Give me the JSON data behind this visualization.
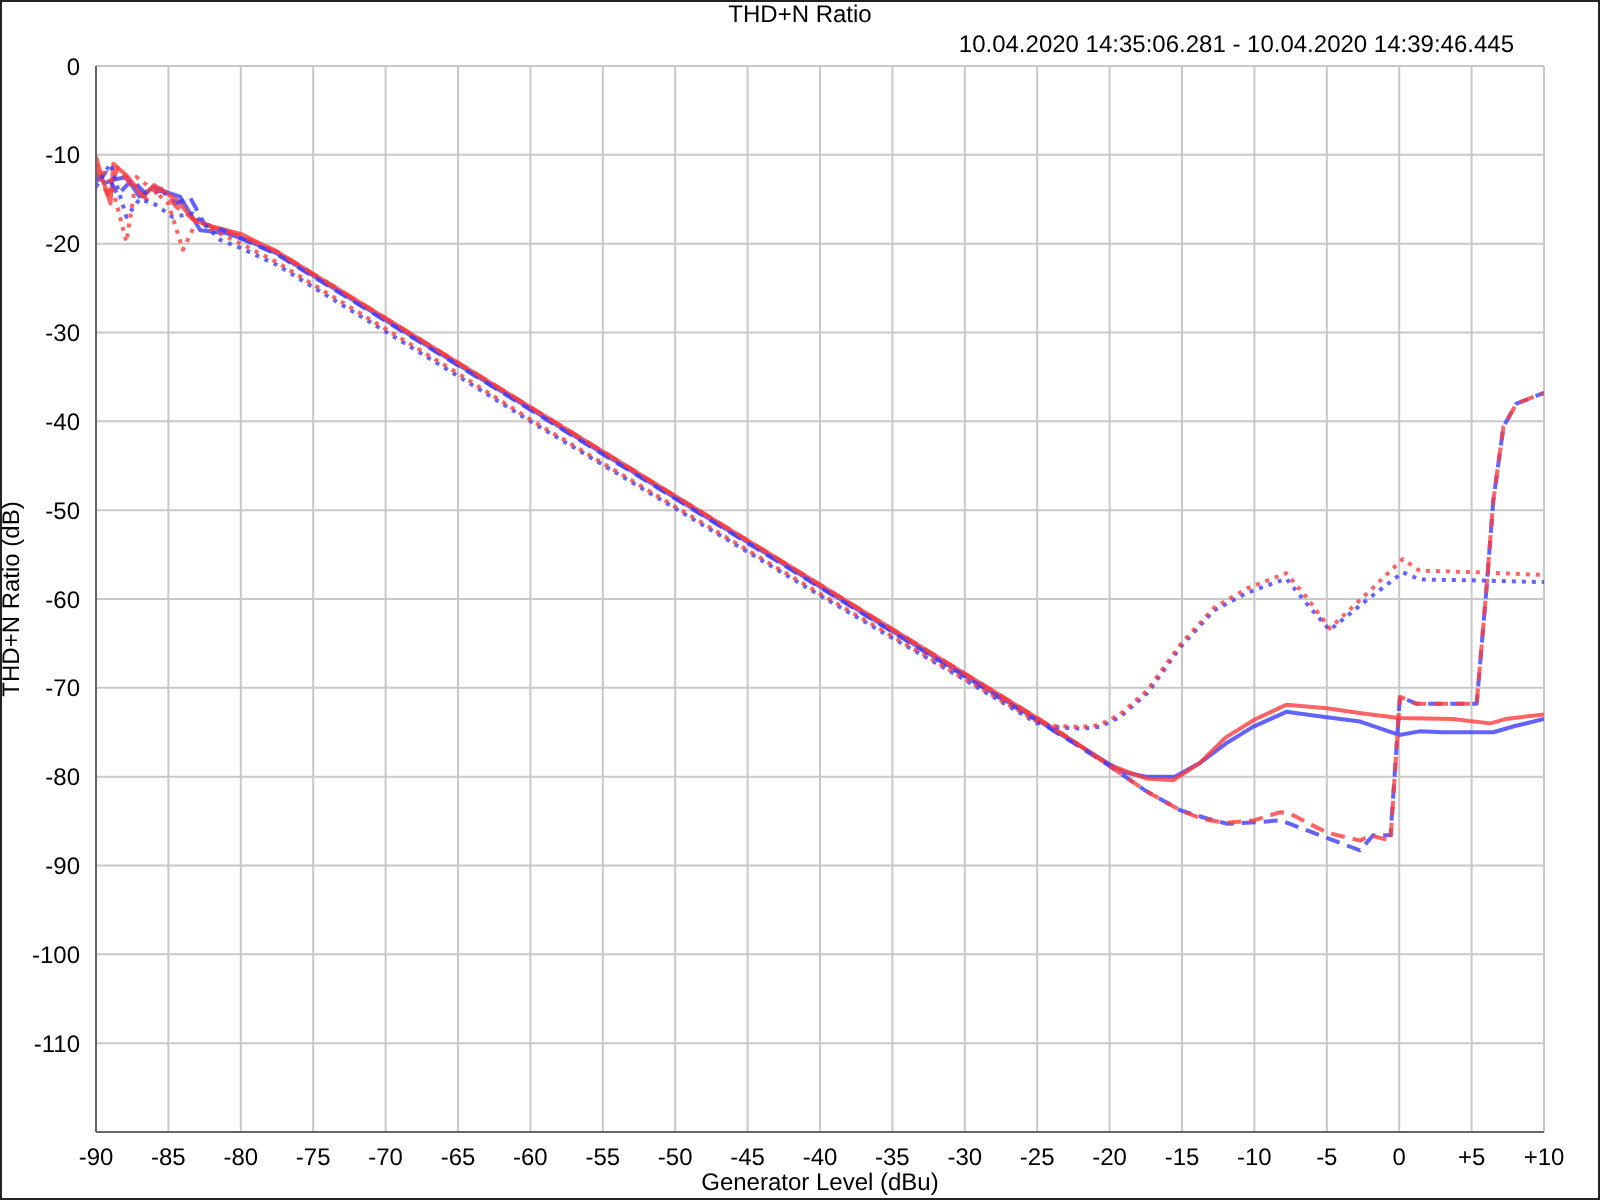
{
  "chart_data": {
    "type": "line",
    "title": "THD+N Ratio",
    "subtitle": "10.04.2020 14:35:06.281 - 10.04.2020 14:39:46.445",
    "xlabel": "Generator Level (dBu)",
    "ylabel": "THD+N Ratio (dB)",
    "xlim": [
      -90,
      10
    ],
    "xticks": [
      -90,
      -85,
      -80,
      -75,
      -70,
      -65,
      -60,
      -55,
      -50,
      -45,
      -40,
      -35,
      -30,
      -25,
      -20,
      -15,
      -10,
      -5,
      0,
      {
        "value": 5,
        "label": "+5"
      },
      {
        "value": 10,
        "label": "+10"
      }
    ],
    "ylim": [
      -120,
      0
    ],
    "yticks": [
      0,
      -10,
      -20,
      -30,
      -40,
      -50,
      -60,
      -70,
      -80,
      -90,
      -100,
      -110,
      {
        "value": -120,
        "label": null
      }
    ],
    "grid": true,
    "series": [
      {
        "color": "#3c3cff",
        "line_style": "solid",
        "x": [
          -90,
          -89.4,
          -88.8,
          -87.9,
          -87,
          -86,
          -85,
          -84.2,
          -82.8,
          -81,
          -79.6,
          -77.5,
          -75,
          -72.5,
          -70,
          -67.5,
          -65,
          -62.5,
          -60,
          -57.5,
          -55,
          -52.5,
          -50,
          -47.5,
          -45,
          -42.5,
          -40,
          -37.5,
          -35,
          -32.5,
          -30,
          -27.5,
          -25,
          -22.5,
          -20,
          -19,
          -17.5,
          -15.5,
          -13.8,
          -12,
          -10.1,
          -7.8,
          -5,
          -2.7,
          0,
          1.4,
          3,
          5.1,
          6.5,
          8,
          10
        ],
        "values": [
          -12.1,
          -13.2,
          -12.8,
          -12.5,
          -14.7,
          -13.6,
          -14.3,
          -14.7,
          -18.5,
          -18.8,
          -19.6,
          -21.1,
          -23.6,
          -26.1,
          -28.6,
          -31.1,
          -33.6,
          -36.1,
          -38.6,
          -41.1,
          -43.6,
          -46.1,
          -48.6,
          -51.1,
          -53.6,
          -56.1,
          -58.6,
          -61.1,
          -63.6,
          -66.1,
          -68.6,
          -71.1,
          -73.6,
          -76.1,
          -78.6,
          -79.5,
          -80,
          -80,
          -78.5,
          -76.3,
          -74.4,
          -72.7,
          -73.3,
          -73.8,
          -75.3,
          -74.9,
          -75,
          -75,
          -75,
          -74.3,
          -73.5
        ]
      },
      {
        "color": "#ff3c3c",
        "line_style": "solid",
        "x": [
          -90,
          -89.5,
          -89,
          -88.8,
          -87.9,
          -86.7,
          -86,
          -84.4,
          -83.3,
          -81.9,
          -80,
          -77.5,
          -75,
          -72.5,
          -70,
          -67.5,
          -65,
          -62.5,
          -60,
          -57.5,
          -55,
          -52.5,
          -50,
          -47.5,
          -45,
          -42.5,
          -40,
          -37.5,
          -35,
          -32.5,
          -30,
          -27.5,
          -25,
          -22.5,
          -20,
          -17.5,
          -15.6,
          -13.8,
          -12,
          -10,
          -7.8,
          -5,
          -2.5,
          0,
          3.7,
          6.3,
          7.4,
          10
        ],
        "values": [
          -10.2,
          -13,
          -15.5,
          -11,
          -12.3,
          -14.7,
          -13.4,
          -15.1,
          -17.3,
          -18.1,
          -18.9,
          -20.9,
          -23.4,
          -25.9,
          -28.4,
          -30.9,
          -33.4,
          -35.9,
          -38.4,
          -40.9,
          -43.4,
          -45.9,
          -48.4,
          -50.9,
          -53.4,
          -55.9,
          -58.4,
          -60.9,
          -63.4,
          -65.9,
          -68.4,
          -70.9,
          -73.4,
          -76,
          -78.7,
          -80.2,
          -80.4,
          -78.5,
          -75.6,
          -73.6,
          -71.9,
          -72.3,
          -72.9,
          -73.4,
          -73.5,
          -74,
          -73.5,
          -73
        ]
      },
      {
        "color": "#3c3cff",
        "line_style": "dashed",
        "x": [
          -90,
          -89.3,
          -88.5,
          -87.5,
          -86.5,
          -85.5,
          -84.5,
          -83.5,
          -82.5,
          -81,
          -80,
          -77.5,
          -75,
          -70,
          -65,
          -60,
          -55,
          -50,
          -45,
          -40,
          -35,
          -30,
          -25,
          -22.5,
          -20,
          -17.5,
          -15.1,
          -13.5,
          -11.9,
          -9.6,
          -8.2,
          -5,
          -2.7,
          -1.8,
          -0.6,
          0.05,
          1.2,
          5,
          5.35,
          6,
          6.5,
          7.2,
          8.1,
          10
        ],
        "values": [
          -13,
          -12,
          -14.5,
          -12.8,
          -14.5,
          -14,
          -15.5,
          -14.8,
          -17.8,
          -18.6,
          -19.4,
          -21.2,
          -23.7,
          -28.7,
          -33.7,
          -38.7,
          -43.7,
          -48.7,
          -53.7,
          -58.7,
          -63.7,
          -68.7,
          -73.7,
          -76.2,
          -78.8,
          -81.6,
          -83.8,
          -84.6,
          -85.3,
          -85.1,
          -84.9,
          -86.9,
          -88.3,
          -86.6,
          -86.6,
          -71,
          -71.8,
          -71.8,
          -71.8,
          -59.4,
          -48.9,
          -40.6,
          -38,
          -36.8
        ]
      },
      {
        "color": "#ff3c3c",
        "line_style": "dashed",
        "x": [
          -90,
          -89.2,
          -88.5,
          -87.5,
          -86.5,
          -85.5,
          -84.5,
          -83,
          -81.5,
          -80,
          -77.5,
          -75,
          -70,
          -65,
          -60,
          -55,
          -50,
          -45,
          -40,
          -35,
          -30,
          -25,
          -22.5,
          -20,
          -17.5,
          -15.1,
          -13.5,
          -11.9,
          -10,
          -8.2,
          -7.5,
          -5,
          -2.7,
          -2,
          -0.6,
          0.05,
          1.2,
          5,
          5.35,
          6,
          6.5,
          7.2,
          8.1,
          10
        ],
        "values": [
          -11.5,
          -14.5,
          -11.5,
          -13.5,
          -15,
          -13.8,
          -15.8,
          -17.5,
          -18.4,
          -19.1,
          -20.9,
          -23.4,
          -28.4,
          -33.4,
          -38.4,
          -43.4,
          -48.4,
          -53.4,
          -58.4,
          -63.4,
          -68.4,
          -73.4,
          -76,
          -78.8,
          -81.6,
          -83.8,
          -84.8,
          -85.2,
          -84.9,
          -84,
          -84.2,
          -86.3,
          -87.2,
          -86.6,
          -87.2,
          -71,
          -71.8,
          -71.8,
          -71.8,
          -59.4,
          -48.9,
          -40.6,
          -38,
          -36.8
        ]
      },
      {
        "color": "#3c3cff",
        "line_style": "dotted",
        "x": [
          -90,
          -89,
          -87.9,
          -87,
          -86,
          -84.7,
          -83.3,
          -81.4,
          -80,
          -77.5,
          -75,
          -70,
          -65,
          -60,
          -55,
          -50,
          -45,
          -40,
          -35,
          -30,
          -25,
          -23.9,
          -22,
          -20.7,
          -19.3,
          -17.4,
          -15.1,
          -12.8,
          -10.5,
          -7.8,
          -6.4,
          -4.8,
          -2.3,
          0.25,
          1.4,
          5,
          10
        ],
        "values": [
          -13.6,
          -11,
          -17,
          -15,
          -15.5,
          -17,
          -16.6,
          -19.6,
          -20.5,
          -22.4,
          -24.9,
          -29.9,
          -34.9,
          -40,
          -44.9,
          -49.8,
          -54.7,
          -59.6,
          -64.4,
          -69.1,
          -74,
          -74.4,
          -74.6,
          -74.4,
          -73.3,
          -70.6,
          -65.4,
          -61.3,
          -59.3,
          -57.7,
          -60.5,
          -63.5,
          -60.2,
          -57,
          -57.8,
          -57.9,
          -58.1
        ]
      },
      {
        "color": "#ff3c3c",
        "line_style": "dotted",
        "x": [
          -90,
          -89,
          -88.5,
          -87.9,
          -87.2,
          -86,
          -85,
          -84,
          -83,
          -82,
          -80,
          -77.5,
          -75,
          -70,
          -65,
          -60,
          -55,
          -50,
          -45,
          -40,
          -35,
          -30,
          -25,
          -23.9,
          -22,
          -20.7,
          -19.3,
          -17.4,
          -15.1,
          -12.8,
          -10.5,
          -7.8,
          -6.4,
          -4.8,
          -2.3,
          0.25,
          1.4,
          5.6,
          10
        ],
        "values": [
          -11,
          -13,
          -16,
          -19.8,
          -12.5,
          -14,
          -15.5,
          -20.7,
          -17.3,
          -18.4,
          -20,
          -22.1,
          -24.6,
          -29.6,
          -34.6,
          -39.8,
          -44.7,
          -49.6,
          -54.5,
          -59.4,
          -64.2,
          -69,
          -73.8,
          -74.3,
          -74.4,
          -74.2,
          -73,
          -70.3,
          -65.1,
          -61,
          -58.8,
          -57.1,
          -59.8,
          -63.3,
          -59.5,
          -55.5,
          -56.8,
          -57,
          -57.3
        ]
      }
    ]
  }
}
